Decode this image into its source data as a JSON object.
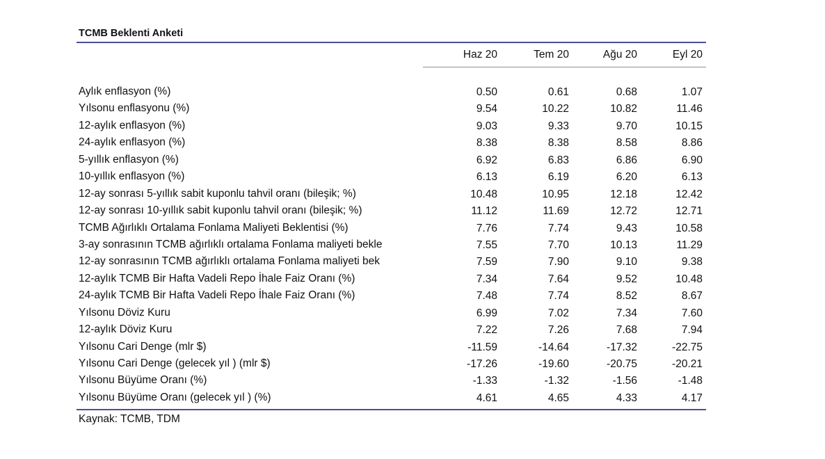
{
  "title": "TCMB Beklenti Anketi",
  "columns": [
    "Haz 20",
    "Tem 20",
    "Ağu 20",
    "Eyl 20"
  ],
  "rows": [
    {
      "label": "Aylık enflasyon (%)",
      "values": [
        "0.50",
        "0.61",
        "0.68",
        "1.07"
      ]
    },
    {
      "label": "Yılsonu enflasyonu (%)",
      "values": [
        "9.54",
        "10.22",
        "10.82",
        "11.46"
      ]
    },
    {
      "label": "12-aylık enflasyon (%)",
      "values": [
        "9.03",
        "9.33",
        "9.70",
        "10.15"
      ]
    },
    {
      "label": "24-aylık enflasyon (%)",
      "values": [
        "8.38",
        "8.38",
        "8.58",
        "8.86"
      ]
    },
    {
      "label": "5-yıllık enflasyon (%)",
      "values": [
        "6.92",
        "6.83",
        "6.86",
        "6.90"
      ]
    },
    {
      "label": "10-yıllık enflasyon (%)",
      "values": [
        "6.13",
        "6.19",
        "6.20",
        "6.13"
      ]
    },
    {
      "label": "12-ay sonrası 5-yıllık sabit kuponlu tahvil oranı (bileşik; %)",
      "values": [
        "10.48",
        "10.95",
        "12.18",
        "12.42"
      ]
    },
    {
      "label": "12-ay sonrası 10-yıllık sabit kuponlu tahvil oranı (bileşik; %)",
      "values": [
        "11.12",
        "11.69",
        "12.72",
        "12.71"
      ]
    },
    {
      "label": "TCMB Ağırlıklı Ortalama Fonlama Maliyeti Beklentisi (%)",
      "values": [
        "7.76",
        "7.74",
        "9.43",
        "10.58"
      ]
    },
    {
      "label": "3-ay sonrasının TCMB ağırlıklı ortalama Fonlama maliyeti bekle",
      "values": [
        "7.55",
        "7.70",
        "10.13",
        "11.29"
      ]
    },
    {
      "label": "12-ay sonrasının TCMB ağırlıklı ortalama Fonlama maliyeti bek",
      "values": [
        "7.59",
        "7.90",
        "9.10",
        "9.38"
      ]
    },
    {
      "label": "12-aylık TCMB Bir Hafta Vadeli Repo İhale Faiz Oranı (%)",
      "values": [
        "7.34",
        "7.64",
        "9.52",
        "10.48"
      ]
    },
    {
      "label": "24-aylık TCMB Bir Hafta Vadeli Repo İhale Faiz Oranı (%)",
      "values": [
        "7.48",
        "7.74",
        "8.52",
        "8.67"
      ]
    },
    {
      "label": "Yılsonu Döviz Kuru",
      "values": [
        "6.99",
        "7.02",
        "7.34",
        "7.60"
      ]
    },
    {
      "label": "12-aylık Döviz Kuru",
      "values": [
        "7.22",
        "7.26",
        "7.68",
        "7.94"
      ]
    },
    {
      "label": "Yılsonu Cari Denge (mlr $)",
      "values": [
        "-11.59",
        "-14.64",
        "-17.32",
        "-22.75"
      ]
    },
    {
      "label": "Yılsonu Cari Denge (gelecek yıl ) (mlr $)",
      "values": [
        "-17.26",
        "-19.60",
        "-20.75",
        "-20.21"
      ]
    },
    {
      "label": "Yılsonu Büyüme Oranı (%)",
      "values": [
        "-1.33",
        "-1.32",
        "-1.56",
        "-1.48"
      ]
    },
    {
      "label": "Yılsonu Büyüme Oranı (gelecek yıl ) (%)",
      "values": [
        "4.61",
        "4.65",
        "4.33",
        "4.17"
      ]
    }
  ],
  "source": "Kaynak: TCMB, TDM",
  "colors": {
    "rule": "#4a4e96",
    "text": "#111111"
  }
}
